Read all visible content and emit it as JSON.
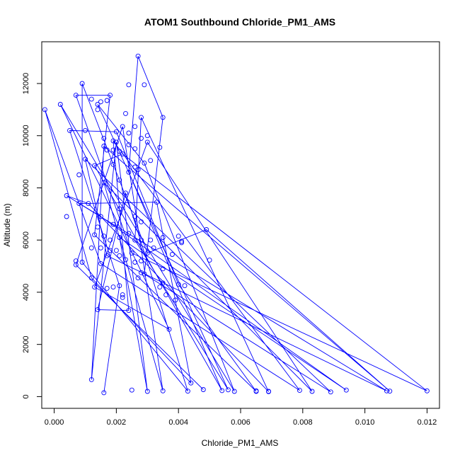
{
  "chart_data": {
    "type": "line",
    "title": "ATOM1 Southbound Chloride_PM1_AMS",
    "xlabel": "Chloride_PM1_AMS",
    "ylabel": "Altitude (m)",
    "xlim": [
      -0.0004,
      0.0124
    ],
    "ylim": [
      -450,
      13600
    ],
    "x_ticks": [
      0.0,
      0.002,
      0.004,
      0.006,
      0.008,
      0.01,
      0.012
    ],
    "x_tick_labels": [
      "0.000",
      "0.002",
      "0.004",
      "0.006",
      "0.008",
      "0.010",
      "0.012"
    ],
    "y_ticks": [
      0,
      2000,
      4000,
      6000,
      8000,
      10000,
      12000
    ],
    "y_tick_labels": [
      "0",
      "2000",
      "4000",
      "6000",
      "8000",
      "10000",
      "12000"
    ],
    "grid": false,
    "legend": "none",
    "series": [
      {
        "color": "#0000ff",
        "markers": "open-circle",
        "points": [
          [
            0.0016,
            150
          ],
          [
            0.0012,
            650
          ],
          [
            0.0025,
            250
          ],
          [
            0.003,
            200
          ],
          [
            0.0035,
            220
          ],
          [
            0.0043,
            210
          ],
          [
            0.0048,
            270
          ],
          [
            0.0054,
            230
          ],
          [
            0.0058,
            200
          ],
          [
            0.0065,
            200
          ],
          [
            0.0069,
            190
          ],
          [
            0.0079,
            240
          ],
          [
            0.0083,
            200
          ],
          [
            0.0089,
            180
          ],
          [
            0.0094,
            250
          ],
          [
            0.0107,
            220
          ],
          [
            0.0108,
            210
          ],
          [
            0.012,
            220
          ],
          [
            0.0044,
            520
          ],
          [
            0.0056,
            260
          ],
          [
            0.0065,
            220
          ],
          [
            0.0069,
            200
          ],
          [
            0.0014,
            3330
          ],
          [
            0.0024,
            3300
          ],
          [
            0.0037,
            2580
          ],
          [
            0.0013,
            4200
          ],
          [
            0.0017,
            4150
          ],
          [
            0.0019,
            4200
          ],
          [
            0.0021,
            4250
          ],
          [
            0.0022,
            3800
          ],
          [
            0.0022,
            3900
          ],
          [
            0.0027,
            4550
          ],
          [
            0.0028,
            4750
          ],
          [
            0.0029,
            4700
          ],
          [
            0.0034,
            4200
          ],
          [
            0.0035,
            4350
          ],
          [
            0.0039,
            3700
          ],
          [
            0.004,
            4300
          ],
          [
            0.0042,
            4250
          ],
          [
            0.0036,
            3900
          ],
          [
            0.0012,
            4550
          ],
          [
            0.0015,
            5100
          ],
          [
            0.0017,
            5400
          ],
          [
            0.0018,
            5600
          ],
          [
            0.002,
            5600
          ],
          [
            0.0021,
            5400
          ],
          [
            0.0023,
            5250
          ],
          [
            0.0025,
            5500
          ],
          [
            0.0026,
            5150
          ],
          [
            0.0028,
            5200
          ],
          [
            0.003,
            5500
          ],
          [
            0.0032,
            5700
          ],
          [
            0.0035,
            4900
          ],
          [
            0.0038,
            5450
          ],
          [
            0.005,
            5230
          ],
          [
            0.0007,
            5050
          ],
          [
            0.0007,
            5200
          ],
          [
            0.0009,
            5150
          ],
          [
            0.0012,
            5700
          ],
          [
            0.0015,
            5700
          ],
          [
            0.0013,
            6200
          ],
          [
            0.0016,
            6150
          ],
          [
            0.0018,
            6000
          ],
          [
            0.0021,
            6100
          ],
          [
            0.0024,
            6250
          ],
          [
            0.0026,
            6000
          ],
          [
            0.0028,
            6000
          ],
          [
            0.0031,
            6000
          ],
          [
            0.0035,
            6100
          ],
          [
            0.004,
            6150
          ],
          [
            0.0041,
            5900
          ],
          [
            0.0041,
            5950
          ],
          [
            0.0049,
            6400
          ],
          [
            0.0004,
            6900
          ],
          [
            0.0008,
            7400
          ],
          [
            0.0011,
            7400
          ],
          [
            0.0014,
            6500
          ],
          [
            0.0015,
            6900
          ],
          [
            0.0019,
            6600
          ],
          [
            0.0021,
            7200
          ],
          [
            0.0023,
            7800
          ],
          [
            0.0026,
            6900
          ],
          [
            0.0028,
            6700
          ],
          [
            0.0033,
            7450
          ],
          [
            0.0004,
            7700
          ],
          [
            0.0008,
            8500
          ],
          [
            0.0013,
            8850
          ],
          [
            0.0016,
            8200
          ],
          [
            0.0019,
            8900
          ],
          [
            0.0021,
            8300
          ],
          [
            0.0024,
            8600
          ],
          [
            0.0026,
            8800
          ],
          [
            0.0027,
            8700
          ],
          [
            0.0029,
            8950
          ],
          [
            0.0031,
            9050
          ],
          [
            0.001,
            9100
          ],
          [
            0.0016,
            9600
          ],
          [
            0.0017,
            9450
          ],
          [
            0.0019,
            9450
          ],
          [
            0.0019,
            9800
          ],
          [
            0.002,
            9750
          ],
          [
            0.0021,
            9400
          ],
          [
            0.0022,
            9300
          ],
          [
            0.0024,
            9650
          ],
          [
            0.0026,
            9500
          ],
          [
            0.003,
            9750
          ],
          [
            0.0034,
            9550
          ],
          [
            0.0016,
            9900
          ],
          [
            0.0005,
            10200
          ],
          [
            0.001,
            10200
          ],
          [
            0.002,
            10150
          ],
          [
            0.0022,
            10350
          ],
          [
            0.0024,
            10100
          ],
          [
            0.0026,
            10350
          ],
          [
            0.0028,
            9900
          ],
          [
            0.003,
            10000
          ],
          [
            0.0035,
            10700
          ],
          [
            -0.0003,
            11000
          ],
          [
            0.0002,
            11200
          ],
          [
            0.0014,
            11000
          ],
          [
            0.0015,
            11300
          ],
          [
            0.0017,
            11350
          ],
          [
            0.0018,
            11550
          ],
          [
            0.0023,
            10850
          ],
          [
            0.0028,
            10700
          ],
          [
            0.0012,
            11400
          ],
          [
            0.0014,
            11200
          ],
          [
            0.0007,
            11550
          ],
          [
            0.0009,
            12000
          ],
          [
            0.0024,
            11950
          ],
          [
            0.0029,
            11950
          ],
          [
            0.0027,
            13050
          ]
        ],
        "path_order": [
          [
            0.0016,
            150
          ],
          [
            0.0021,
            4250
          ],
          [
            0.0005,
            10200
          ],
          [
            0.002,
            10150
          ],
          [
            0.004,
            4300
          ],
          [
            0.0065,
            200
          ],
          [
            0.0013,
            6200
          ],
          [
            0.0018,
            11550
          ],
          [
            0.0007,
            11550
          ],
          [
            0.0025,
            5500
          ],
          [
            0.012,
            220
          ],
          [
            0.0022,
            9300
          ],
          [
            0.0013,
            8850
          ],
          [
            0.0054,
            230
          ],
          [
            0.0024,
            8600
          ],
          [
            0.0027,
            13050
          ],
          [
            0.0035,
            10700
          ],
          [
            0.0029,
            4700
          ],
          [
            0.0089,
            180
          ],
          [
            0.001,
            9100
          ],
          [
            0.0017,
            5400
          ],
          [
            0.0107,
            220
          ],
          [
            0.0008,
            7400
          ],
          [
            0.0033,
            7450
          ],
          [
            0.0044,
            520
          ],
          [
            0.0012,
            4550
          ],
          [
            -0.0003,
            11000
          ],
          [
            0.0015,
            5100
          ],
          [
            0.0079,
            240
          ],
          [
            0.0019,
            9800
          ],
          [
            0.0024,
            3300
          ],
          [
            0.0014,
            3330
          ],
          [
            0.0023,
            7800
          ],
          [
            0.0043,
            210
          ],
          [
            0.0009,
            5150
          ],
          [
            0.0009,
            12000
          ],
          [
            0.003,
            5500
          ],
          [
            0.0049,
            6400
          ],
          [
            0.0108,
            210
          ],
          [
            0.0016,
            9600
          ],
          [
            0.0012,
            650
          ],
          [
            0.002,
            9750
          ],
          [
            0.003,
            200
          ],
          [
            0.0021,
            6100
          ],
          [
            0.0094,
            250
          ],
          [
            0.0015,
            6900
          ],
          [
            0.0004,
            7700
          ],
          [
            0.0011,
            7400
          ],
          [
            0.0069,
            190
          ],
          [
            0.0028,
            10700
          ],
          [
            0.0026,
            6000
          ],
          [
            0.0056,
            260
          ],
          [
            0.0014,
            11200
          ],
          [
            0.0029,
            8950
          ],
          [
            0.0058,
            200
          ],
          [
            0.0002,
            11200
          ],
          [
            0.0037,
            2580
          ],
          [
            0.0013,
            4200
          ],
          [
            0.003,
            9750
          ],
          [
            0.0083,
            200
          ],
          [
            0.0016,
            8200
          ],
          [
            0.0035,
            220
          ],
          [
            0.0022,
            10350
          ],
          [
            0.0007,
            5050
          ],
          [
            0.0048,
            270
          ]
        ]
      }
    ]
  }
}
